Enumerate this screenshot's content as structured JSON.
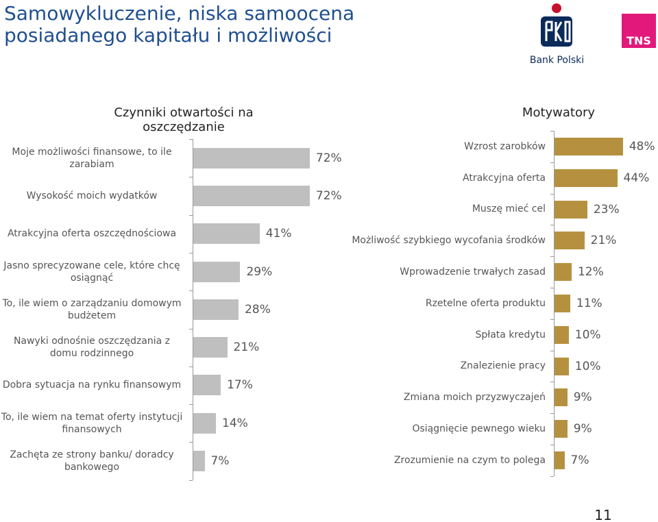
{
  "title": "Samowykluczenie, niska samoocena posiadanego kapitału i możliwości",
  "logo_text": "Bank Polski",
  "tns_text": "TNS",
  "page_number": "11",
  "chart_data": [
    {
      "type": "hbar",
      "title": "Czynniki otwartości na oszczędzanie",
      "color": "#bfbfbf",
      "categories": [
        "Moje możliwości finansowe, to ile zarabiam",
        "Wysokość moich wydatków",
        "Atrakcyjna oferta oszczędnościowa",
        "Jasno sprecyzowane cele, które chcę osiągnąć",
        "To, ile wiem o zarządzaniu domowym budżetem",
        "Nawyki odnośnie oszczędzania z domu rodzinnego",
        "Dobra sytuacja na rynku finansowym",
        "To, ile wiem na temat oferty instytucji finansowych",
        "Zachęta ze strony banku/ doradcy bankowego"
      ],
      "values": [
        72,
        72,
        41,
        29,
        28,
        21,
        17,
        14,
        7
      ],
      "value_labels": [
        "72%",
        "72%",
        "41%",
        "29%",
        "28%",
        "21%",
        "17%",
        "14%",
        "7%"
      ]
    },
    {
      "type": "hbar",
      "title": "Motywatory",
      "color": "#b5913f",
      "categories": [
        "Wzrost zarobków",
        "Atrakcyjna oferta",
        "Muszę mieć cel",
        "Możliwość szybkiego wycofania środków",
        "Wprowadzenie trwałych zasad",
        "Rzetelne oferta produktu",
        "Spłata kredytu",
        "Znalezienie pracy",
        "Zmiana moich przyzwyczajeń",
        "Osiągnięcie pewnego wieku",
        "Zrozumienie na czym to polega"
      ],
      "values": [
        48,
        44,
        23,
        21,
        12,
        11,
        10,
        10,
        9,
        9,
        7
      ],
      "value_labels": [
        "48%",
        "44%",
        "23%",
        "21%",
        "12%",
        "11%",
        "10%",
        "10%",
        "9%",
        "9%",
        "7%"
      ]
    }
  ]
}
